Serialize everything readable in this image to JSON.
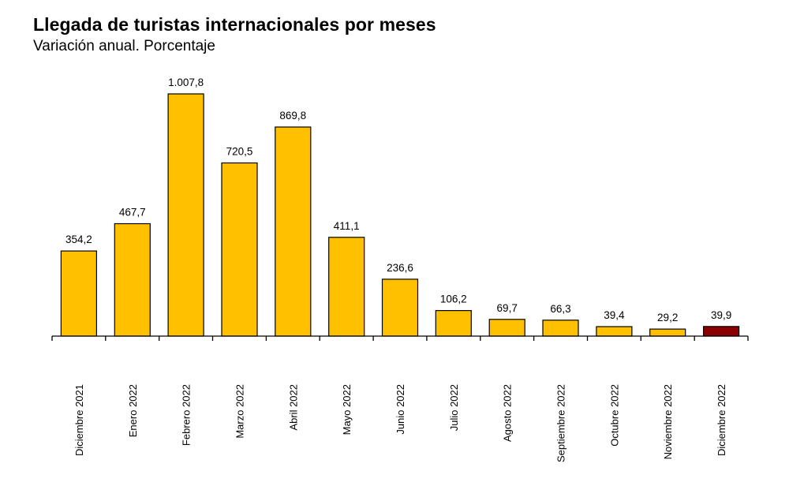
{
  "title": "Llegada de turistas internacionales por meses",
  "subtitle": "Variación anual. Porcentaje",
  "colors": {
    "bar": "#FFC000",
    "highlight": "#8B0000",
    "axis": "#000000",
    "bar_stroke": "#000000"
  },
  "chart_data": {
    "type": "bar",
    "title": "Llegada de turistas internacionales por meses",
    "subtitle": "Variación anual. Porcentaje",
    "xlabel": "",
    "ylabel": "",
    "ylim": [
      0,
      1007.8
    ],
    "grid": false,
    "legend": "none",
    "categories": [
      "Diciembre 2021",
      "Enero 2022",
      "Febrero 2022",
      "Marzo 2022",
      "Abril 2022",
      "Mayo 2022",
      "Junio 2022",
      "Julio 2022",
      "Agosto 2022",
      "Septiembre 2022",
      "Octubre 2022",
      "Noviembre 2022",
      "Diciembre 2022"
    ],
    "values": [
      354.2,
      467.7,
      1007.8,
      720.5,
      869.8,
      411.1,
      236.6,
      106.2,
      69.7,
      66.3,
      39.4,
      29.2,
      39.9
    ],
    "value_labels": [
      "354,2",
      "467,7",
      "1.007,8",
      "720,5",
      "869,8",
      "411,1",
      "236,6",
      "106,2",
      "69,7",
      "66,3",
      "39,4",
      "29,2",
      "39,9"
    ],
    "highlight_index": 12
  }
}
